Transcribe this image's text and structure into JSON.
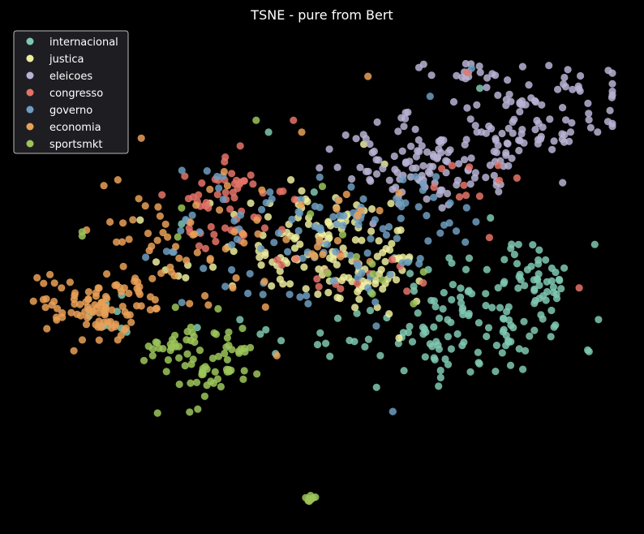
{
  "chart_data": {
    "type": "scatter",
    "title": "TSNE - pure from Bert",
    "xlabel": "",
    "ylabel": "",
    "xlim": [
      -70,
      70
    ],
    "ylim": [
      -62,
      58
    ],
    "grid": false,
    "axes_visible": false,
    "legend_position": "top-left",
    "series": [
      {
        "name": "internacional",
        "color": "#7fc8b2",
        "clusters": [
          {
            "center": [
              38,
              -13
            ],
            "spread": [
              12,
              9
            ],
            "count": 110,
            "seed": 11
          },
          {
            "center": [
              53,
              -3
            ],
            "spread": [
              5,
              4
            ],
            "count": 35,
            "seed": 12
          },
          {
            "center": [
              20,
              -17
            ],
            "spread": [
              10,
              7
            ],
            "count": 22,
            "seed": 13
          },
          {
            "center": [
              -50,
              -13
            ],
            "spread": [
              4,
              3
            ],
            "count": 10,
            "seed": 14
          },
          {
            "center": [
              -5,
              -18
            ],
            "spread": [
              8,
              4
            ],
            "count": 10,
            "seed": 15
          }
        ],
        "points": [
          [
            -34,
            10
          ],
          [
            -2,
            18
          ],
          [
            38,
            44
          ],
          [
            -13,
            33
          ]
        ]
      },
      {
        "name": "justica",
        "color": "#eded9f",
        "clusters": [
          {
            "center": [
              0,
              3
            ],
            "spread": [
              13,
              7
            ],
            "count": 120,
            "seed": 21
          },
          {
            "center": [
              10,
              -5
            ],
            "spread": [
              6,
              4
            ],
            "count": 30,
            "seed": 22
          }
        ],
        "points": [
          [
            15,
            25
          ],
          [
            -44,
            11
          ],
          [
            10,
            30
          ]
        ]
      },
      {
        "name": "eleicoes",
        "color": "#b7b3d3",
        "clusters": [
          {
            "center": [
              25,
              25
            ],
            "spread": [
              12,
              6
            ],
            "count": 120,
            "seed": 31
          },
          {
            "center": [
              45,
              38
            ],
            "spread": [
              9,
              6
            ],
            "count": 35,
            "seed": 32
          },
          {
            "center": [
              60,
              40
            ],
            "spread": [
              8,
              5
            ],
            "count": 35,
            "seed": 33
          },
          {
            "center": [
              52,
              33
            ],
            "spread": [
              6,
              4
            ],
            "count": 20,
            "seed": 34
          },
          {
            "center": [
              34,
              48
            ],
            "spread": [
              6,
              3
            ],
            "count": 15,
            "seed": 35
          }
        ],
        "points": []
      },
      {
        "name": "congresso",
        "color": "#e57368",
        "clusters": [
          {
            "center": [
              -20,
              15
            ],
            "spread": [
              8,
              6
            ],
            "count": 60,
            "seed": 41
          },
          {
            "center": [
              30,
              20
            ],
            "spread": [
              9,
              5
            ],
            "count": 12,
            "seed": 42
          },
          {
            "center": [
              5,
              -2
            ],
            "spread": [
              9,
              5
            ],
            "count": 14,
            "seed": 43
          }
        ],
        "points": [
          [
            35,
            48
          ],
          [
            -7,
            36
          ],
          [
            62,
            -6
          ]
        ]
      },
      {
        "name": "governo",
        "color": "#6f9dc0",
        "clusters": [
          {
            "center": [
              -15,
              5
            ],
            "spread": [
              18,
              10
            ],
            "count": 60,
            "seed": 51
          },
          {
            "center": [
              18,
              12
            ],
            "spread": [
              10,
              6
            ],
            "count": 40,
            "seed": 52
          },
          {
            "center": [
              5,
              6
            ],
            "spread": [
              8,
              6
            ],
            "count": 20,
            "seed": 53
          }
        ],
        "points": [
          [
            17,
            -37
          ],
          [
            26,
            42
          ],
          [
            36,
            49
          ]
        ]
      },
      {
        "name": "economia",
        "color": "#e9a057",
        "clusters": [
          {
            "center": [
              -55,
              -10
            ],
            "spread": [
              8,
              5
            ],
            "count": 95,
            "seed": 61
          },
          {
            "center": [
              -35,
              7
            ],
            "spread": [
              9,
              8
            ],
            "count": 55,
            "seed": 62
          },
          {
            "center": [
              -12,
              0
            ],
            "spread": [
              10,
              6
            ],
            "count": 12,
            "seed": 63
          },
          {
            "center": [
              10,
              15
            ],
            "spread": [
              6,
              3
            ],
            "count": 8,
            "seed": 64
          }
        ],
        "points": [
          [
            -5,
            33
          ],
          [
            11,
            47
          ],
          [
            -11,
            -23
          ]
        ]
      },
      {
        "name": "sportsmkt",
        "color": "#9cc45a",
        "clusters": [
          {
            "center": [
              -27,
              -25
            ],
            "spread": [
              6,
              6
            ],
            "count": 65,
            "seed": 71
          },
          {
            "center": [
              -39,
              -22
            ],
            "spread": [
              3,
              2
            ],
            "count": 14,
            "seed": 72
          },
          {
            "center": [
              -3,
              -58
            ],
            "spread": [
              1,
              1
            ],
            "count": 8,
            "seed": 73
          },
          {
            "center": [
              0,
              8
            ],
            "spread": [
              15,
              10
            ],
            "count": 10,
            "seed": 74
          }
        ],
        "points": [
          [
            -58,
            7
          ],
          [
            -58,
            8
          ],
          [
            -16,
            36
          ],
          [
            -34,
            14
          ],
          [
            12,
            0
          ],
          [
            22,
            -10
          ]
        ]
      }
    ]
  }
}
